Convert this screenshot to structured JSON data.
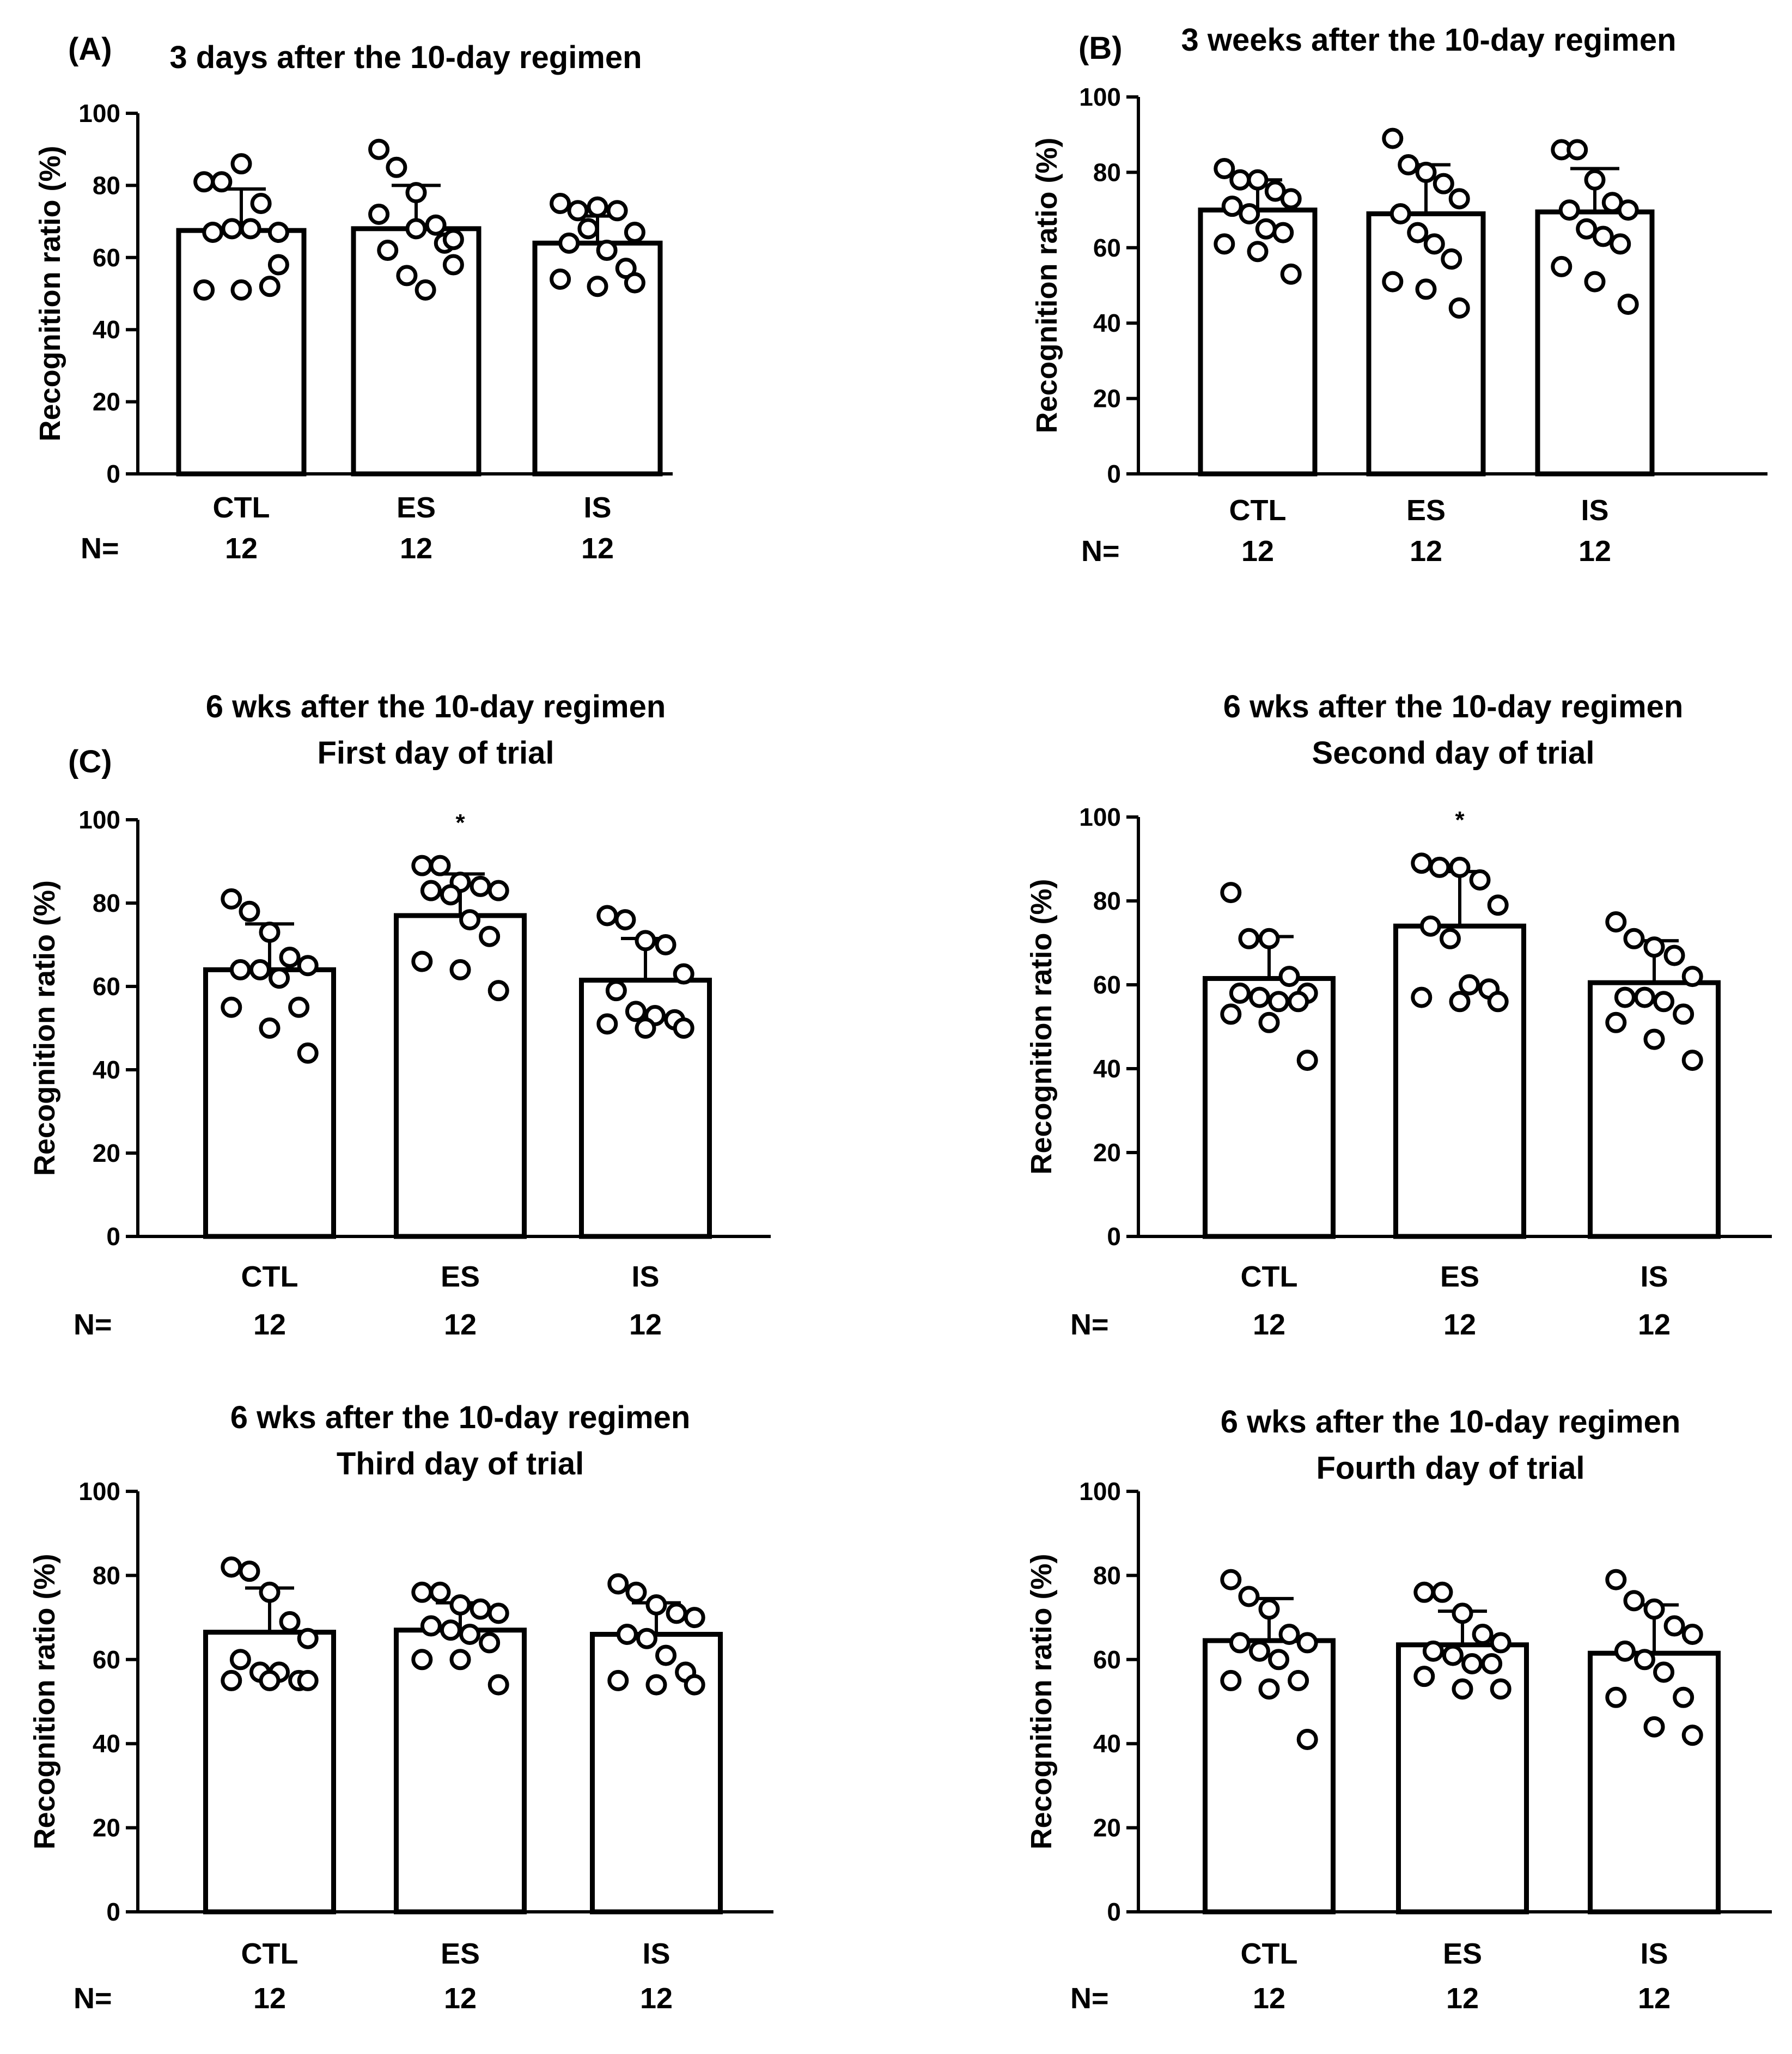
{
  "figure": {
    "n_label": "N="
  },
  "chart_data": [
    {
      "type": "bar",
      "panel_label": "(A)",
      "title": "3 days after the 10-day regimen",
      "subtitle": "",
      "xlabel": "",
      "ylabel": "Recognition ratio (%)",
      "ylim": [
        0,
        100
      ],
      "yticks": [
        "0",
        "20",
        "40",
        "60",
        "80",
        "100"
      ],
      "categories": [
        "CTL",
        "ES",
        "IS"
      ],
      "n": [
        "12",
        "12",
        "12"
      ],
      "values": [
        67.5,
        68,
        64
      ],
      "sd": [
        11.5,
        12,
        7.5
      ],
      "significance": [
        "",
        "",
        ""
      ],
      "points": [
        [
          81,
          81,
          86,
          75,
          67,
          67,
          68,
          68,
          52,
          51,
          51,
          58
        ],
        [
          90,
          85,
          78,
          69,
          58,
          62,
          55,
          51,
          64,
          72,
          68,
          65
        ],
        [
          75,
          73,
          74,
          73,
          67,
          64,
          68,
          62,
          57,
          54,
          52,
          53
        ]
      ]
    },
    {
      "type": "bar",
      "panel_label": "(B)",
      "title": "3 weeks after the 10-day regimen",
      "subtitle": "",
      "xlabel": "",
      "ylabel": "Recognition ratio (%)",
      "ylim": [
        0,
        100
      ],
      "yticks": [
        "0",
        "20",
        "40",
        "60",
        "80",
        "100"
      ],
      "categories": [
        "CTL",
        "ES",
        "IS"
      ],
      "n": [
        "12",
        "12",
        "12"
      ],
      "values": [
        70,
        69,
        69.5
      ],
      "sd": [
        8,
        13,
        11.5
      ],
      "significance": [
        "",
        "",
        ""
      ],
      "points": [
        [
          81,
          78,
          78,
          75,
          73,
          71,
          69,
          65,
          64,
          61,
          59,
          53
        ],
        [
          89,
          82,
          80,
          77,
          73,
          69,
          64,
          61,
          57,
          51,
          49,
          44
        ],
        [
          86,
          86,
          78,
          72,
          70,
          70,
          65,
          63,
          61,
          55,
          51,
          45
        ]
      ]
    },
    {
      "type": "bar",
      "panel_label": "(C)",
      "title": "6 wks after the 10-day regimen",
      "subtitle": "First day of trial",
      "xlabel": "",
      "ylabel": "Recognition ratio (%)",
      "ylim": [
        0,
        100
      ],
      "yticks": [
        "0",
        "20",
        "40",
        "60",
        "80",
        "100"
      ],
      "categories": [
        "CTL",
        "ES",
        "IS"
      ],
      "n": [
        "12",
        "12",
        "12"
      ],
      "values": [
        64,
        77,
        61.5
      ],
      "sd": [
        11,
        10,
        10
      ],
      "significance": [
        "",
        "*",
        ""
      ],
      "points": [
        [
          81,
          78,
          73,
          67,
          65,
          64,
          64,
          62,
          55,
          55,
          50,
          44
        ],
        [
          89,
          89,
          85,
          84,
          83,
          83,
          82,
          76,
          72,
          66,
          64,
          59
        ],
        [
          77,
          76,
          71,
          70,
          63,
          59,
          54,
          53,
          52,
          51,
          50,
          50
        ]
      ]
    },
    {
      "type": "bar",
      "panel_label": "",
      "title": "6 wks after the 10-day regimen",
      "subtitle": "Second day of trial",
      "xlabel": "",
      "ylabel": "Recognition ratio (%)",
      "ylim": [
        0,
        100
      ],
      "yticks": [
        "0",
        "20",
        "40",
        "60",
        "80",
        "100"
      ],
      "categories": [
        "CTL",
        "ES",
        "IS"
      ],
      "n": [
        "12",
        "12",
        "12"
      ],
      "values": [
        61.5,
        74,
        60.5
      ],
      "sd": [
        10,
        13,
        10
      ],
      "significance": [
        "",
        "*",
        ""
      ],
      "points": [
        [
          82,
          71,
          71,
          62,
          58,
          58,
          57,
          56,
          56,
          53,
          51,
          42
        ],
        [
          89,
          88,
          88,
          85,
          79,
          74,
          71,
          60,
          59,
          57,
          56,
          56
        ],
        [
          75,
          71,
          69,
          67,
          62,
          57,
          57,
          56,
          53,
          51,
          47,
          42
        ]
      ]
    },
    {
      "type": "bar",
      "panel_label": "",
      "title": "6 wks after the 10-day regimen",
      "subtitle": "Third day of trial",
      "xlabel": "",
      "ylabel": "Recognition ratio (%)",
      "ylim": [
        0,
        100
      ],
      "yticks": [
        "0",
        "20",
        "40",
        "60",
        "80",
        "100"
      ],
      "categories": [
        "CTL",
        "ES",
        "IS"
      ],
      "n": [
        "12",
        "12",
        "12"
      ],
      "values": [
        66.5,
        67,
        66
      ],
      "sd": [
        10.5,
        6.5,
        7.5
      ],
      "significance": [
        "",
        "",
        ""
      ],
      "points": [
        [
          82,
          81,
          76,
          69,
          65,
          60,
          57,
          57,
          55,
          55,
          55,
          55
        ],
        [
          76,
          76,
          73,
          72,
          71,
          68,
          67,
          66,
          64,
          60,
          60,
          54
        ],
        [
          78,
          76,
          73,
          71,
          70,
          66,
          65,
          61,
          57,
          55,
          54,
          54
        ]
      ]
    },
    {
      "type": "bar",
      "panel_label": "",
      "title": "6 wks after the 10-day regimen",
      "subtitle": "Fourth day of trial",
      "xlabel": "",
      "ylabel": "Recognition ratio (%)",
      "ylim": [
        0,
        100
      ],
      "yticks": [
        "0",
        "20",
        "40",
        "60",
        "80",
        "100"
      ],
      "categories": [
        "CTL",
        "ES",
        "IS"
      ],
      "n": [
        "12",
        "12",
        "12"
      ],
      "values": [
        64.5,
        63.5,
        61.5
      ],
      "sd": [
        10,
        8,
        11.5
      ],
      "significance": [
        "",
        "",
        ""
      ],
      "points": [
        [
          79,
          75,
          72,
          66,
          64,
          64,
          62,
          60,
          55,
          55,
          53,
          41
        ],
        [
          76,
          76,
          71,
          66,
          64,
          62,
          61,
          59,
          59,
          56,
          53,
          53
        ],
        [
          79,
          74,
          72,
          68,
          66,
          62,
          60,
          57,
          51,
          51,
          44,
          42
        ]
      ]
    }
  ]
}
